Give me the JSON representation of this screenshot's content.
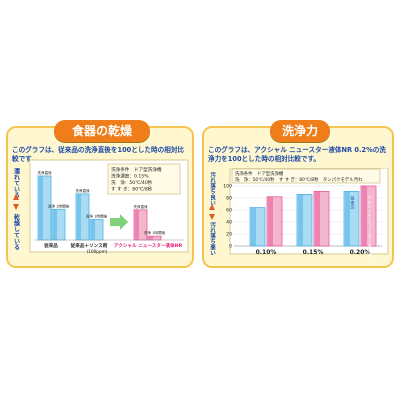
{
  "panel_left": {
    "title": "食器の乾燥",
    "description": "このグラフは、従来品の洗浄直後を100とした時の相対比較です。",
    "y_top_label": "濡れている",
    "y_bottom_label": "乾燥している",
    "conditions": [
      "洗浄条件　ドア型洗浄機",
      "洗浄濃度：0.15%",
      "洗　浄：50℃/40秒",
      "す す ぎ：80℃/8秒"
    ],
    "arrow_color": "#7fd27a"
  },
  "panel_right": {
    "title": "洗浄力",
    "description": "このグラフは、アクシャル ニュースター液体NR 0.2%の洗浄力を100とした時の相対比較です。",
    "y_top_label": "汚れ落ち良い",
    "y_bottom_label": "汚れ落ち悪い",
    "conditions": [
      "洗浄条件　ドア型洗浄機",
      "洗　浄：50℃/40秒　す す ぎ：80℃/8秒　タンパクモデル汚れ"
    ]
  },
  "colors": {
    "blue": "#4fb3e6",
    "pink": "#ea5a9a",
    "blue_pale": "#a9dbf3",
    "pink_pale": "#f3b6cf"
  },
  "chart_data": [
    {
      "type": "bar",
      "title": "食器の乾燥",
      "ylim": [
        0,
        100
      ],
      "groups": [
        "従来品",
        "従来品＋リンス剤",
        "アクシャル ニュースター液体NR"
      ],
      "group_sublabels": [
        "",
        "(100ppm)",
        ""
      ],
      "bars": [
        {
          "group": 0,
          "label": "洗浄直後",
          "value": 100,
          "color": "blue"
        },
        {
          "group": 0,
          "label": "洗浄 1時間後",
          "value": 48,
          "color": "blue"
        },
        {
          "group": 1,
          "label": "洗浄直後",
          "value": 72,
          "color": "blue"
        },
        {
          "group": 1,
          "label": "洗浄 1時間後",
          "value": 32,
          "color": "blue"
        },
        {
          "group": 2,
          "label": "洗浄直後",
          "value": 47,
          "color": "pink"
        },
        {
          "group": 2,
          "label": "洗浄 1時間後",
          "value": 6,
          "color": "pink"
        }
      ]
    },
    {
      "type": "bar",
      "title": "洗浄力",
      "ylim": [
        0,
        100
      ],
      "yticks": [
        0,
        20,
        40,
        60,
        80,
        100
      ],
      "categories": [
        "0.10%",
        "0.15%",
        "0.20%"
      ],
      "series": [
        {
          "name": "従来品",
          "values": [
            64,
            86,
            91
          ],
          "color": "blue"
        },
        {
          "name": "アクシャル ニュースター液体NR",
          "values": [
            82,
            91,
            100
          ],
          "color": "pink"
        }
      ]
    }
  ]
}
